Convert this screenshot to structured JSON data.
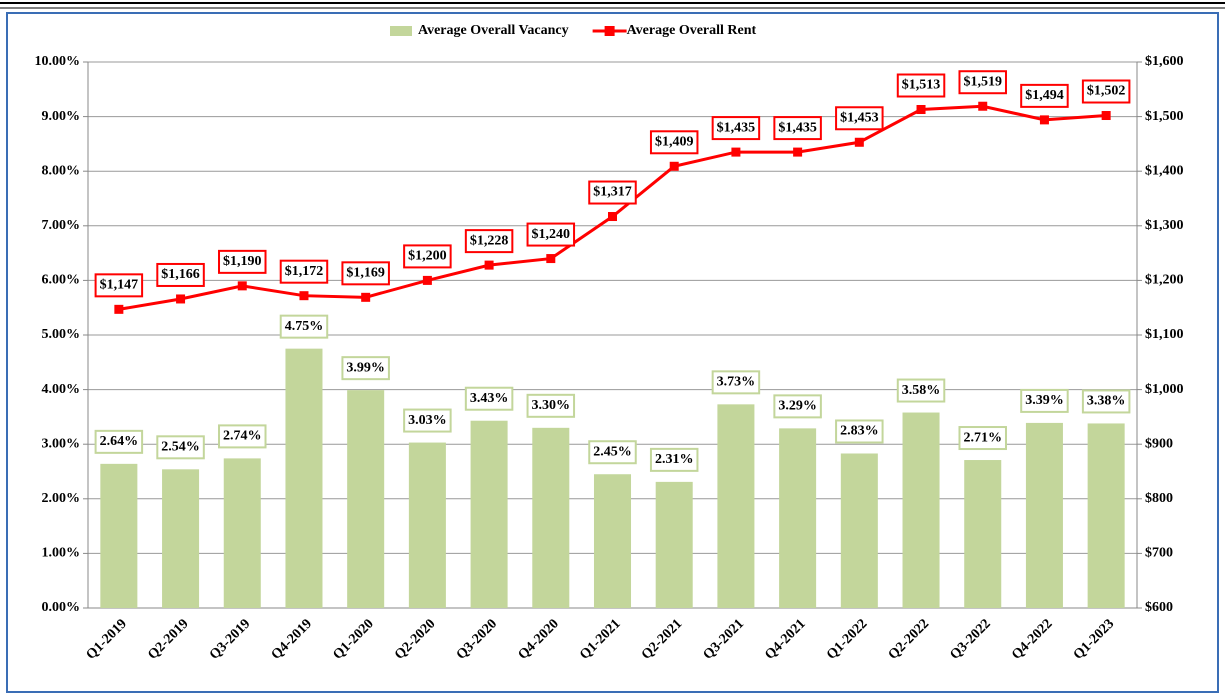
{
  "chart_data": {
    "type": "bar",
    "categories": [
      "Q1-2019",
      "Q2-2019",
      "Q3-2019",
      "Q4-2019",
      "Q1-2020",
      "Q2-2020",
      "Q3-2020",
      "Q4-2020",
      "Q1-2021",
      "Q2-2021",
      "Q3-2021",
      "Q4-2021",
      "Q1-2022",
      "Q2-2022",
      "Q3-2022",
      "Q4-2022",
      "Q1-2023"
    ],
    "series": [
      {
        "name": "Average Overall Vacancy",
        "type": "bar",
        "color": "#c3d69b",
        "axis": "y",
        "values": [
          2.64,
          2.54,
          2.74,
          4.75,
          3.99,
          3.03,
          3.43,
          3.3,
          2.45,
          2.31,
          3.73,
          3.29,
          2.83,
          3.58,
          2.71,
          3.39,
          3.38
        ],
        "value_labels": [
          "2.64%",
          "2.54%",
          "2.74%",
          "4.75%",
          "3.99%",
          "3.03%",
          "3.43%",
          "3.30%",
          "2.45%",
          "2.31%",
          "3.73%",
          "3.29%",
          "2.83%",
          "3.58%",
          "2.71%",
          "3.39%",
          "3.38%"
        ]
      },
      {
        "name": "Average Overall Rent",
        "type": "line",
        "color": "#ff0000",
        "axis": "y2",
        "values": [
          1147,
          1166,
          1190,
          1172,
          1169,
          1200,
          1228,
          1240,
          1317,
          1409,
          1435,
          1435,
          1453,
          1513,
          1519,
          1494,
          1502
        ],
        "value_labels": [
          "$1,147",
          "$1,166",
          "$1,190",
          "$1,172",
          "$1,169",
          "$1,200",
          "$1,228",
          "$1,240",
          "$1,317",
          "$1,409",
          "$1,435",
          "$1,435",
          "$1,453",
          "$1,513",
          "$1,519",
          "$1,494",
          "$1,502"
        ]
      }
    ],
    "ylim": [
      0,
      10
    ],
    "yticks": [
      {
        "value": 0,
        "label": "0.00%"
      },
      {
        "value": 1,
        "label": "1.00%"
      },
      {
        "value": 2,
        "label": "2.00%"
      },
      {
        "value": 3,
        "label": "3.00%"
      },
      {
        "value": 4,
        "label": "4.00%"
      },
      {
        "value": 5,
        "label": "5.00%"
      },
      {
        "value": 6,
        "label": "6.00%"
      },
      {
        "value": 7,
        "label": "7.00%"
      },
      {
        "value": 8,
        "label": "8.00%"
      },
      {
        "value": 9,
        "label": "9.00%"
      },
      {
        "value": 10,
        "label": "10.00%"
      }
    ],
    "y2lim": [
      600,
      1600
    ],
    "y2ticks": [
      {
        "value": 600,
        "label": "$600"
      },
      {
        "value": 700,
        "label": "$700"
      },
      {
        "value": 800,
        "label": "$800"
      },
      {
        "value": 900,
        "label": "$900"
      },
      {
        "value": 1000,
        "label": "$1,000"
      },
      {
        "value": 1100,
        "label": "$1,100"
      },
      {
        "value": 1200,
        "label": "$1,200"
      },
      {
        "value": 1300,
        "label": "$1,300"
      },
      {
        "value": 1400,
        "label": "$1,400"
      },
      {
        "value": 1500,
        "label": "$1,500"
      },
      {
        "value": 1600,
        "label": "$1,600"
      }
    ],
    "grid": true,
    "legend": "top"
  }
}
